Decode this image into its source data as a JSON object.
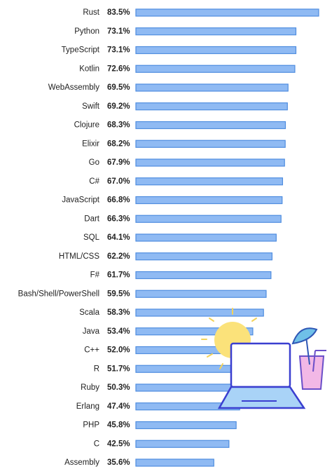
{
  "chart_data": {
    "type": "bar",
    "orientation": "horizontal",
    "categories": [
      "Rust",
      "Python",
      "TypeScript",
      "Kotlin",
      "WebAssembly",
      "Swift",
      "Clojure",
      "Elixir",
      "Go",
      "C#",
      "JavaScript",
      "Dart",
      "SQL",
      "HTML/CSS",
      "F#",
      "Bash/Shell/PowerShell",
      "Scala",
      "Java",
      "C++",
      "R",
      "Ruby",
      "Erlang",
      "PHP",
      "C",
      "Assembly"
    ],
    "values": [
      83.5,
      73.1,
      73.1,
      72.6,
      69.5,
      69.2,
      68.3,
      68.2,
      67.9,
      67.0,
      66.8,
      66.3,
      64.1,
      62.2,
      61.7,
      59.5,
      58.3,
      53.4,
      52.0,
      51.7,
      50.3,
      47.4,
      45.8,
      42.5,
      35.6
    ],
    "value_labels": [
      "83.5%",
      "73.1%",
      "73.1%",
      "72.6%",
      "69.5%",
      "69.2%",
      "68.3%",
      "68.2%",
      "67.9%",
      "67.0%",
      "66.8%",
      "66.3%",
      "64.1%",
      "62.2%",
      "61.7%",
      "59.5%",
      "58.3%",
      "53.4%",
      "52.0%",
      "51.7%",
      "50.3%",
      "47.4%",
      "45.8%",
      "42.5%",
      "35.6%"
    ],
    "color": "#8fbaf3",
    "edge_color": "#4f8ddf"
  }
}
